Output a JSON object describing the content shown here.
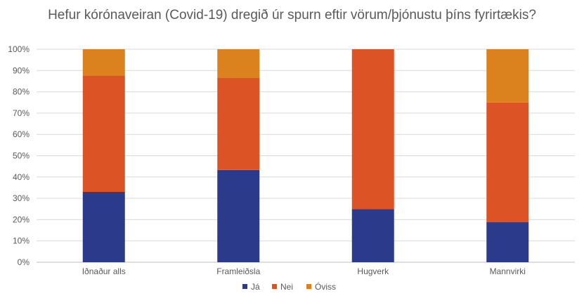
{
  "chart_data": {
    "type": "bar",
    "stacked": true,
    "title": "Hefur kórónaveiran (Covid-19) dregið úr spurn eftir vörum/þjónustu þíns fyrirtækis?",
    "categories": [
      "Iðnaður alls",
      "Framleiðsla",
      "Hugverk",
      "Mannvirki"
    ],
    "series": [
      {
        "name": "Já",
        "color": "#2b3a8a",
        "values": [
          0.33,
          0.433,
          0.25,
          0.188
        ]
      },
      {
        "name": "Nei",
        "color": "#dc5426",
        "values": [
          0.547,
          0.433,
          0.75,
          0.562
        ]
      },
      {
        "name": "Óviss",
        "color": "#db821e",
        "values": [
          0.123,
          0.134,
          0.0,
          0.25
        ]
      }
    ],
    "yticks": [
      "0%",
      "10%",
      "20%",
      "30%",
      "40%",
      "50%",
      "60%",
      "70%",
      "80%",
      "90%",
      "100%"
    ],
    "ylim": [
      0,
      1
    ],
    "grid": true,
    "legend": "bottom"
  }
}
